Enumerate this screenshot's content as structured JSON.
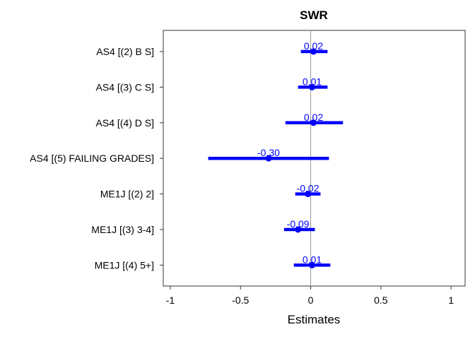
{
  "chart_data": {
    "type": "forest",
    "title": "SWR",
    "xlabel": "Estimates",
    "xlim": [
      -1.05,
      1.1
    ],
    "xticks": [
      -1,
      -0.5,
      0,
      0.5,
      1
    ],
    "xtick_labels": [
      "-1",
      "-0.5",
      "0",
      "0.5",
      "1"
    ],
    "reference_line": 0,
    "color": "#0000ff",
    "rows": [
      {
        "term": "AS4 [(2) B S]",
        "estimate": 0.02,
        "ci": [
          -0.07,
          0.12
        ],
        "label": "0.02"
      },
      {
        "term": "AS4 [(3) C S]",
        "estimate": 0.01,
        "ci": [
          -0.09,
          0.12
        ],
        "label": "0.01"
      },
      {
        "term": "AS4 [(4) D S]",
        "estimate": 0.02,
        "ci": [
          -0.18,
          0.23
        ],
        "label": "0.02"
      },
      {
        "term": "AS4 [(5) FAILING GRADES]",
        "estimate": -0.3,
        "ci": [
          -0.73,
          0.13
        ],
        "label": "-0.30"
      },
      {
        "term": "ME1J [(2) 2]",
        "estimate": -0.02,
        "ci": [
          -0.11,
          0.07
        ],
        "label": "-0.02"
      },
      {
        "term": "ME1J [(3) 3-4]",
        "estimate": -0.09,
        "ci": [
          -0.19,
          0.03
        ],
        "label": "-0.09"
      },
      {
        "term": "ME1J [(4) 5+]",
        "estimate": 0.01,
        "ci": [
          -0.12,
          0.14
        ],
        "label": "0.01"
      }
    ]
  }
}
